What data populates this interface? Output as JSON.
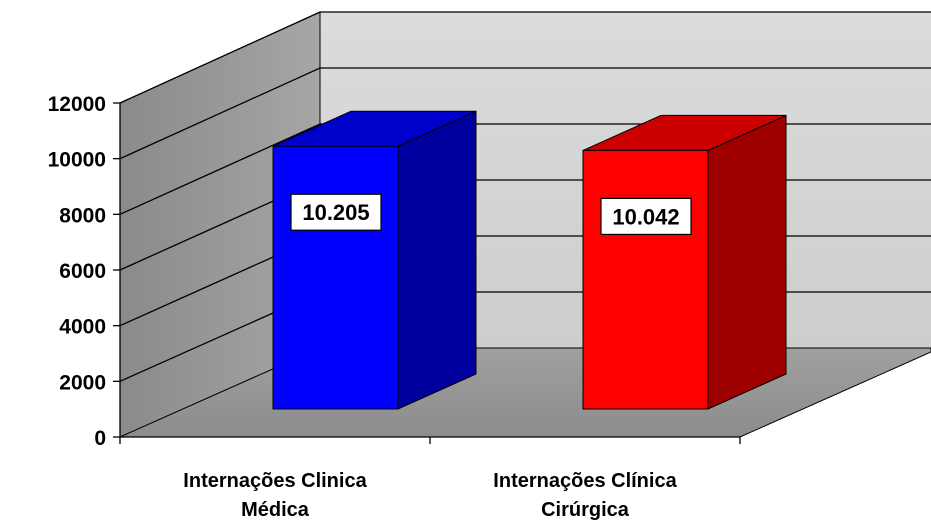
{
  "chart_data": {
    "type": "bar",
    "style": "3d-column",
    "categories": [
      [
        "Internações Clinica",
        "Médica"
      ],
      [
        "Internações Clínica",
        "Cirúrgica"
      ]
    ],
    "values": [
      10205,
      10042
    ],
    "data_labels": [
      "10.205",
      "10.042"
    ],
    "bar_colors": [
      "#0000ff",
      "#ff0000"
    ],
    "ylim": [
      0,
      12000
    ],
    "yticks": [
      "0",
      "2000",
      "4000",
      "6000",
      "8000",
      "10000",
      "12000"
    ],
    "grid": true,
    "legend": false,
    "title": "",
    "xlabel": "",
    "ylabel": ""
  }
}
